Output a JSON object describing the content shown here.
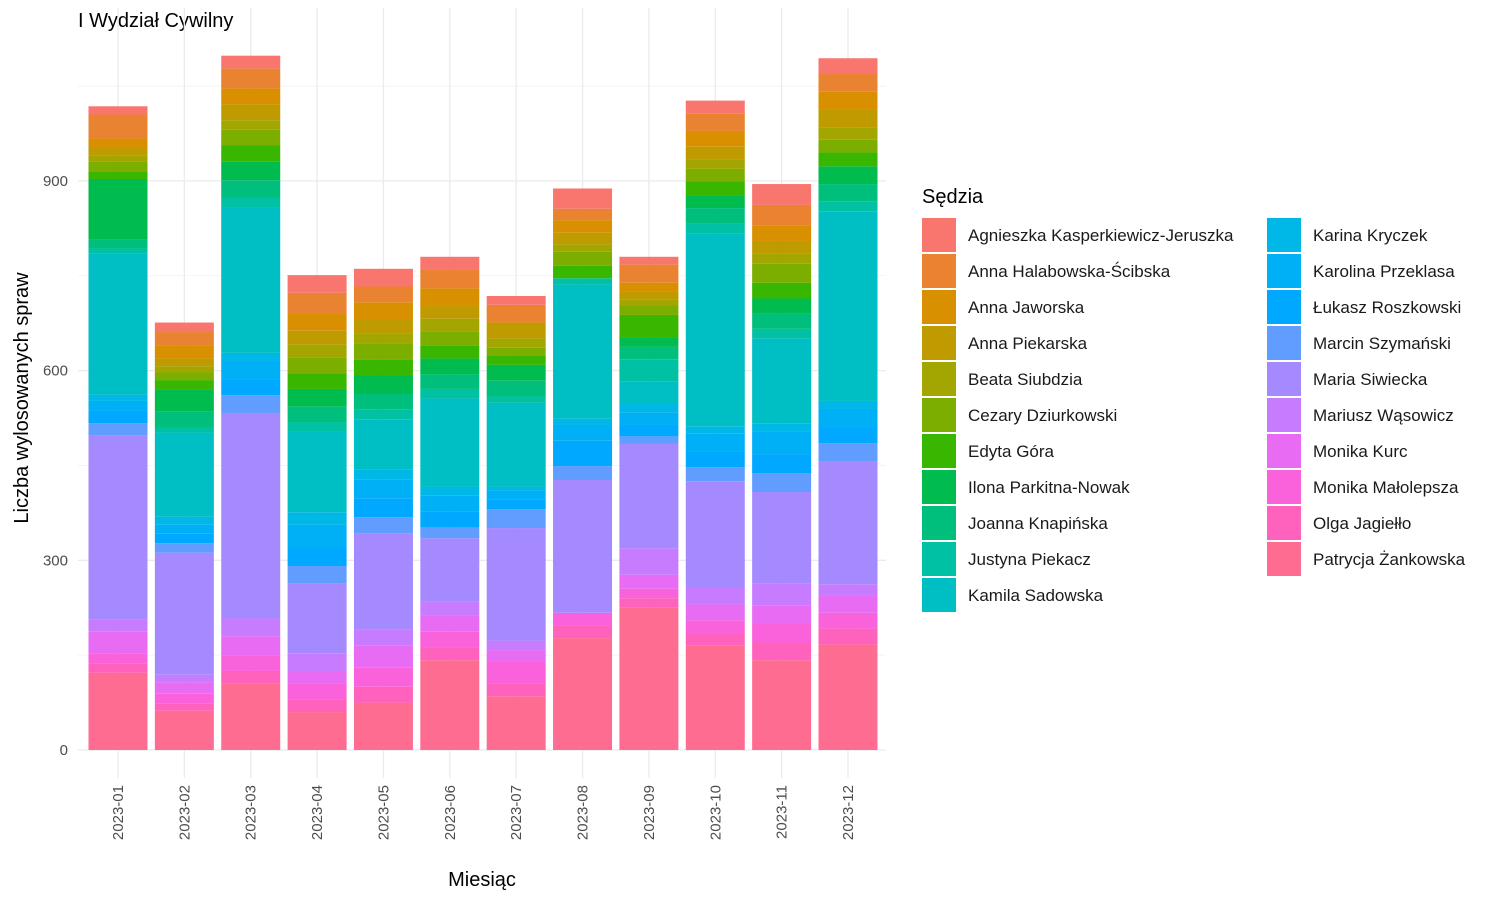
{
  "chart_data": {
    "type": "bar",
    "stacked": true,
    "title": "I Wydział Cywilny",
    "xlabel": "Miesiąc",
    "ylabel": "Liczba wylosowanych spraw",
    "ylim": [
      0,
      1150
    ],
    "yticks": [
      0,
      300,
      600,
      900
    ],
    "grid": true,
    "legend_title": "Sędzia",
    "legend_position": "right",
    "categories": [
      "2023-01",
      "2023-02",
      "2023-03",
      "2023-04",
      "2023-05",
      "2023-06",
      "2023-07",
      "2023-08",
      "2023-09",
      "2023-10",
      "2023-11",
      "2023-12"
    ],
    "series": [
      {
        "name": "Agnieszka Kasperkiewicz-Jeruszka",
        "color": "#F8766D",
        "values": [
          13,
          15,
          20,
          28,
          28,
          20,
          14,
          32,
          12,
          20,
          33,
          25
        ]
      },
      {
        "name": "Anna Halabowska-Ścibska",
        "color": "#EA8331",
        "values": [
          38,
          22,
          32,
          32,
          25,
          30,
          28,
          18,
          29,
          28,
          32,
          28
        ]
      },
      {
        "name": "Anna Jaworska",
        "color": "#D89000",
        "values": [
          15,
          20,
          25,
          28,
          28,
          27,
          0,
          20,
          14,
          25,
          25,
          28
        ]
      },
      {
        "name": "Anna Piekarska",
        "color": "#C09B00",
        "values": [
          12,
          12,
          25,
          22,
          22,
          21,
          25,
          18,
          12,
          20,
          20,
          28
        ]
      },
      {
        "name": "Beata Siubdzia",
        "color": "#A3A500",
        "values": [
          10,
          10,
          15,
          20,
          15,
          20,
          15,
          12,
          10,
          15,
          16,
          20
        ]
      },
      {
        "name": "Cezary Dziurkowski",
        "color": "#7CAE00",
        "values": [
          15,
          12,
          25,
          25,
          25,
          22,
          12,
          22,
          15,
          20,
          30,
          20
        ]
      },
      {
        "name": "Edyta Góra",
        "color": "#39B600",
        "values": [
          12,
          15,
          25,
          25,
          25,
          21,
          15,
          20,
          35,
          22,
          25,
          22
        ]
      },
      {
        "name": "Ilona Parkitna-Nowak",
        "color": "#00BB4E",
        "values": [
          95,
          35,
          30,
          28,
          30,
          25,
          25,
          0,
          15,
          20,
          23,
          28
        ]
      },
      {
        "name": "Joanna Knapińska",
        "color": "#00BF7D",
        "values": [
          15,
          25,
          28,
          25,
          25,
          23,
          25,
          0,
          20,
          25,
          25,
          28
        ]
      },
      {
        "name": "Justyna Piekacz",
        "color": "#00C1A3",
        "values": [
          8,
          8,
          15,
          15,
          15,
          15,
          10,
          10,
          35,
          15,
          15,
          15
        ]
      },
      {
        "name": "Kamila Sadowska",
        "color": "#00BFC4",
        "values": [
          223,
          133,
          230,
          127,
          80,
          140,
          133,
          212,
          35,
          305,
          135,
          300
        ]
      },
      {
        "name": "Karina Kryczek",
        "color": "#00B8E7",
        "values": [
          10,
          12,
          12,
          20,
          15,
          14,
          5,
          10,
          14,
          12,
          13,
          12
        ]
      },
      {
        "name": "Karolina Przeklasa",
        "color": "#00B0F6",
        "values": [
          15,
          15,
          30,
          35,
          30,
          25,
          15,
          25,
          20,
          28,
          35,
          30
        ]
      },
      {
        "name": "Łukasz Roszkowski",
        "color": "#00A9FF",
        "values": [
          20,
          15,
          25,
          30,
          30,
          25,
          15,
          40,
          18,
          25,
          30,
          25
        ]
      },
      {
        "name": "Marcin Szymański",
        "color": "#619CFF",
        "values": [
          20,
          15,
          28,
          28,
          25,
          17,
          30,
          22,
          12,
          22,
          30,
          28
        ]
      },
      {
        "name": "Maria Siwiecka",
        "color": "#A58AFF",
        "values": [
          290,
          193,
          325,
          110,
          153,
          100,
          178,
          210,
          165,
          168,
          145,
          195
        ]
      },
      {
        "name": "Mariusz Wąsowicz",
        "color": "#C77CFF",
        "values": [
          20,
          12,
          28,
          28,
          25,
          23,
          15,
          0,
          42,
          27,
          35,
          17
        ]
      },
      {
        "name": "Monika Kurc",
        "color": "#E76BF3",
        "values": [
          35,
          18,
          30,
          20,
          35,
          25,
          18,
          0,
          22,
          25,
          28,
          28
        ]
      },
      {
        "name": "Monika Małolepsza",
        "color": "#FA62DB",
        "values": [
          15,
          15,
          25,
          25,
          30,
          25,
          35,
          20,
          15,
          20,
          30,
          25
        ]
      },
      {
        "name": "Olga Jagiełło",
        "color": "#FF62BC",
        "values": [
          15,
          12,
          20,
          20,
          25,
          20,
          20,
          20,
          15,
          20,
          28,
          25
        ]
      },
      {
        "name": "Patrycja Żankowska",
        "color": "#FF6C91",
        "values": [
          122,
          62,
          105,
          60,
          75,
          142,
          85,
          177,
          225,
          165,
          142,
          167
        ]
      }
    ]
  }
}
